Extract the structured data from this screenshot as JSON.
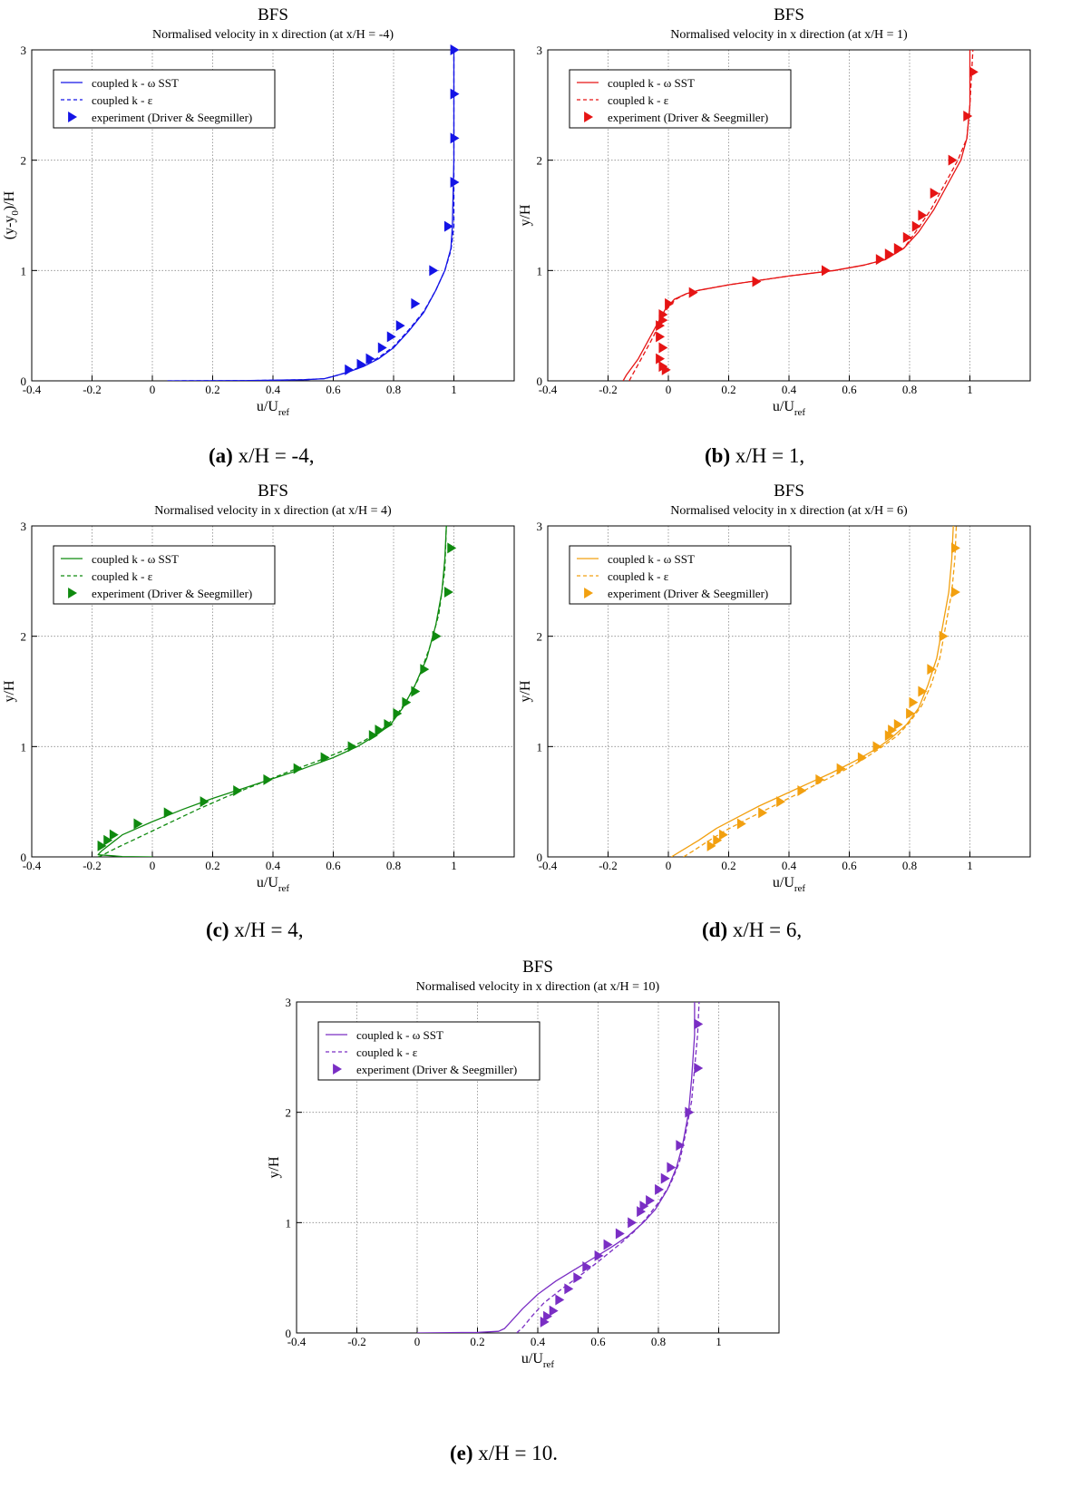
{
  "figure": {
    "captions": [
      {
        "tag": "(a)",
        "text": " x/H = -4,"
      },
      {
        "tag": "(b)",
        "text": " x/H = 1,"
      },
      {
        "tag": "(c)",
        "text": " x/H = 4,"
      },
      {
        "tag": "(d)",
        "text": " x/H = 6,"
      },
      {
        "tag": "(e)",
        "text": " x/H = 10."
      }
    ]
  },
  "chart_data": [
    {
      "type": "line",
      "title": "BFS",
      "subtitle": "Normalised velocity in  x direction (at x/H = -4)",
      "xlabel": "u/U",
      "xlabel_sub": "ref",
      "ylabel": "(y-y",
      "ylabel_sub": "0",
      "ylabel_tail": ")/H",
      "xlim": [
        -0.4,
        1.2
      ],
      "ylim": [
        0,
        3
      ],
      "xticks": [
        -0.4,
        -0.2,
        0,
        0.2,
        0.4,
        0.6,
        0.8,
        1
      ],
      "yticks": [
        0,
        1,
        2,
        3
      ],
      "grid": true,
      "legend_position": "top-left",
      "color": "#1414e6",
      "series": [
        {
          "name": "coupled k - ω SST",
          "style": "solid",
          "x": [
            0.05,
            0.3,
            0.5,
            0.57,
            0.6,
            0.65,
            0.7,
            0.75,
            0.8,
            0.85,
            0.9,
            0.94,
            0.97,
            0.99,
            0.995,
            1.0,
            1.0,
            1.0
          ],
          "y": [
            0,
            0.002,
            0.01,
            0.02,
            0.04,
            0.08,
            0.13,
            0.2,
            0.3,
            0.45,
            0.62,
            0.82,
            1.0,
            1.2,
            1.4,
            2.0,
            2.5,
            3.0
          ]
        },
        {
          "name": "coupled k - ε",
          "style": "dashed",
          "x": [
            0.05,
            0.3,
            0.5,
            0.57,
            0.6,
            0.65,
            0.7,
            0.75,
            0.8,
            0.85,
            0.9,
            0.94,
            0.97,
            0.99,
            1.0,
            1.0,
            1.0,
            1.0
          ],
          "y": [
            0,
            0.002,
            0.01,
            0.02,
            0.04,
            0.08,
            0.14,
            0.21,
            0.31,
            0.46,
            0.63,
            0.82,
            1.0,
            1.18,
            1.4,
            2.0,
            2.5,
            3.0
          ]
        },
        {
          "name": "experiment (Driver & Seegmiller)",
          "style": "marker",
          "x": [
            0.65,
            0.69,
            0.72,
            0.76,
            0.79,
            0.82,
            0.87,
            0.93,
            0.98,
            1.0,
            1.0,
            1.0,
            1.0
          ],
          "y": [
            0.1,
            0.15,
            0.2,
            0.3,
            0.4,
            0.5,
            0.7,
            1.0,
            1.4,
            1.8,
            2.2,
            2.6,
            3.0
          ]
        }
      ]
    },
    {
      "type": "line",
      "title": "BFS",
      "subtitle": "Normalised velocity in  x direction (at x/H = 1)",
      "xlabel": "u/U",
      "xlabel_sub": "ref",
      "ylabel": "y/H",
      "ylabel_sub": "",
      "ylabel_tail": "",
      "xlim": [
        -0.4,
        1.2
      ],
      "ylim": [
        0,
        3
      ],
      "xticks": [
        -0.4,
        -0.2,
        0,
        0.2,
        0.4,
        0.6,
        0.8,
        1
      ],
      "yticks": [
        0,
        1,
        2,
        3
      ],
      "grid": true,
      "legend_position": "top-left",
      "color": "#e61414",
      "series": [
        {
          "name": "coupled k - ω SST",
          "style": "solid",
          "x": [
            -0.15,
            -0.14,
            -0.1,
            -0.06,
            -0.03,
            -0.01,
            0.02,
            0.06,
            0.1,
            0.2,
            0.4,
            0.55,
            0.65,
            0.72,
            0.78,
            0.83,
            0.88,
            0.93,
            0.97,
            0.99,
            1.0,
            1.0
          ],
          "y": [
            0,
            0.05,
            0.2,
            0.4,
            0.55,
            0.65,
            0.74,
            0.79,
            0.82,
            0.87,
            0.95,
            1.0,
            1.05,
            1.1,
            1.2,
            1.35,
            1.55,
            1.8,
            2.0,
            2.2,
            2.5,
            3.0
          ]
        },
        {
          "name": "coupled k - ε",
          "style": "dashed",
          "x": [
            -0.13,
            -0.12,
            -0.09,
            -0.05,
            -0.025,
            -0.005,
            0.025,
            0.06,
            0.1,
            0.2,
            0.4,
            0.55,
            0.65,
            0.72,
            0.78,
            0.82,
            0.87,
            0.92,
            0.96,
            0.99,
            1.0,
            1.01
          ],
          "y": [
            0,
            0.05,
            0.2,
            0.4,
            0.55,
            0.65,
            0.74,
            0.79,
            0.82,
            0.87,
            0.95,
            1.0,
            1.05,
            1.1,
            1.2,
            1.35,
            1.55,
            1.8,
            2.0,
            2.2,
            2.5,
            3.0
          ]
        },
        {
          "name": "experiment (Driver & Seegmiller)",
          "style": "marker",
          "x": [
            -0.01,
            -0.02,
            -0.03,
            -0.02,
            -0.03,
            -0.03,
            -0.02,
            -0.02,
            0.0,
            0.08,
            0.29,
            0.52,
            0.7,
            0.73,
            0.76,
            0.79,
            0.82,
            0.84,
            0.88,
            0.94,
            0.99,
            1.01
          ],
          "y": [
            0.1,
            0.13,
            0.2,
            0.3,
            0.4,
            0.5,
            0.55,
            0.6,
            0.7,
            0.8,
            0.9,
            1.0,
            1.1,
            1.15,
            1.2,
            1.3,
            1.4,
            1.5,
            1.7,
            2.0,
            2.4,
            2.8
          ]
        }
      ]
    },
    {
      "type": "line",
      "title": "BFS",
      "subtitle": "Normalised velocity in  x direction (at x/H = 4)",
      "xlabel": "u/U",
      "xlabel_sub": "ref",
      "ylabel": "y/H",
      "ylabel_sub": "",
      "ylabel_tail": "",
      "xlim": [
        -0.4,
        1.2
      ],
      "ylim": [
        0,
        3
      ],
      "xticks": [
        -0.4,
        -0.2,
        0,
        0.2,
        0.4,
        0.6,
        0.8,
        1
      ],
      "yticks": [
        0,
        1,
        2,
        3
      ],
      "grid": true,
      "legend_position": "top-left",
      "color": "#0f8a0f",
      "series": [
        {
          "name": "coupled k - ω SST",
          "style": "solid",
          "x": [
            0.0,
            -0.1,
            -0.18,
            -0.17,
            -0.1,
            0.0,
            0.1,
            0.2,
            0.3,
            0.4,
            0.5,
            0.6,
            0.68,
            0.74,
            0.79,
            0.83,
            0.87,
            0.91,
            0.94,
            0.96,
            0.97,
            0.975
          ],
          "y": [
            0.0,
            0.003,
            0.02,
            0.05,
            0.2,
            0.32,
            0.43,
            0.53,
            0.62,
            0.71,
            0.8,
            0.9,
            1.0,
            1.1,
            1.2,
            1.35,
            1.55,
            1.8,
            2.1,
            2.4,
            2.7,
            3.0
          ]
        },
        {
          "name": "coupled k - ε",
          "style": "dashed",
          "x": [
            -0.18,
            -0.17,
            -0.12,
            -0.05,
            0.05,
            0.15,
            0.25,
            0.35,
            0.45,
            0.55,
            0.63,
            0.7,
            0.76,
            0.8,
            0.84,
            0.88,
            0.92,
            0.95,
            0.97,
            0.975
          ],
          "y": [
            0,
            0.01,
            0.08,
            0.17,
            0.3,
            0.43,
            0.55,
            0.66,
            0.77,
            0.87,
            0.96,
            1.05,
            1.15,
            1.25,
            1.4,
            1.6,
            1.9,
            2.2,
            2.6,
            3.0
          ]
        },
        {
          "name": "experiment (Driver & Seegmiller)",
          "style": "marker",
          "x": [
            -0.17,
            -0.15,
            -0.13,
            -0.05,
            0.05,
            0.17,
            0.28,
            0.38,
            0.48,
            0.57,
            0.66,
            0.73,
            0.75,
            0.78,
            0.81,
            0.84,
            0.87,
            0.9,
            0.94,
            0.98,
            0.99
          ],
          "y": [
            0.1,
            0.15,
            0.2,
            0.3,
            0.4,
            0.5,
            0.6,
            0.7,
            0.8,
            0.9,
            1.0,
            1.1,
            1.15,
            1.2,
            1.3,
            1.4,
            1.5,
            1.7,
            2.0,
            2.4,
            2.8
          ]
        }
      ]
    },
    {
      "type": "line",
      "title": "BFS",
      "subtitle": "Normalised velocity in  x direction (at x/H = 6)",
      "xlabel": "u/U",
      "xlabel_sub": "ref",
      "ylabel": "y/H",
      "ylabel_sub": "",
      "ylabel_tail": "",
      "xlim": [
        -0.4,
        1.2
      ],
      "ylim": [
        0,
        3
      ],
      "xticks": [
        -0.4,
        -0.2,
        0,
        0.2,
        0.4,
        0.6,
        0.8,
        1
      ],
      "yticks": [
        0,
        1,
        2,
        3
      ],
      "grid": true,
      "legend_position": "top-left",
      "color": "#f2a010",
      "series": [
        {
          "name": "coupled k - ω SST",
          "style": "solid",
          "x": [
            0.01,
            0.04,
            0.1,
            0.16,
            0.23,
            0.3,
            0.38,
            0.46,
            0.54,
            0.62,
            0.69,
            0.74,
            0.79,
            0.83,
            0.86,
            0.89,
            0.91,
            0.93,
            0.94,
            0.945
          ],
          "y": [
            0,
            0.05,
            0.15,
            0.26,
            0.36,
            0.46,
            0.56,
            0.66,
            0.76,
            0.87,
            0.98,
            1.08,
            1.2,
            1.35,
            1.55,
            1.8,
            2.1,
            2.4,
            2.7,
            3.0
          ]
        },
        {
          "name": "coupled k - ε",
          "style": "dashed",
          "x": [
            0.05,
            0.08,
            0.13,
            0.19,
            0.26,
            0.34,
            0.42,
            0.5,
            0.58,
            0.65,
            0.71,
            0.76,
            0.8,
            0.84,
            0.87,
            0.9,
            0.92,
            0.94,
            0.95,
            0.955
          ],
          "y": [
            0,
            0.05,
            0.14,
            0.24,
            0.34,
            0.45,
            0.56,
            0.67,
            0.78,
            0.89,
            1.0,
            1.1,
            1.22,
            1.37,
            1.55,
            1.8,
            2.1,
            2.4,
            2.7,
            3.0
          ]
        },
        {
          "name": "experiment (Driver & Seegmiller)",
          "style": "marker",
          "x": [
            0.14,
            0.16,
            0.18,
            0.24,
            0.31,
            0.37,
            0.44,
            0.5,
            0.57,
            0.64,
            0.69,
            0.73,
            0.74,
            0.76,
            0.8,
            0.81,
            0.84,
            0.87,
            0.91,
            0.95,
            0.95
          ],
          "y": [
            0.1,
            0.15,
            0.2,
            0.3,
            0.4,
            0.5,
            0.6,
            0.7,
            0.8,
            0.9,
            1.0,
            1.1,
            1.15,
            1.2,
            1.3,
            1.4,
            1.5,
            1.7,
            2.0,
            2.4,
            2.8
          ]
        }
      ]
    },
    {
      "type": "line",
      "title": "BFS",
      "subtitle": "Normalised velocity in  x direction (at x/H = 10)",
      "xlabel": "u/U",
      "xlabel_sub": "ref",
      "ylabel": "y/H",
      "ylabel_sub": "",
      "ylabel_tail": "",
      "xlim": [
        -0.4,
        1.2
      ],
      "ylim": [
        0,
        3
      ],
      "xticks": [
        -0.4,
        -0.2,
        0,
        0.2,
        0.4,
        0.6,
        0.8,
        1
      ],
      "yticks": [
        0,
        1,
        2,
        3
      ],
      "grid": true,
      "legend_position": "top-left",
      "color": "#7a2ec4",
      "series": [
        {
          "name": "coupled k - ω SST",
          "style": "solid",
          "x": [
            0.0,
            0.2,
            0.27,
            0.29,
            0.31,
            0.35,
            0.4,
            0.46,
            0.52,
            0.58,
            0.64,
            0.7,
            0.75,
            0.79,
            0.83,
            0.86,
            0.88,
            0.9,
            0.91,
            0.92,
            0.92
          ],
          "y": [
            0,
            0.005,
            0.015,
            0.04,
            0.1,
            0.22,
            0.35,
            0.47,
            0.57,
            0.67,
            0.77,
            0.88,
            1.0,
            1.12,
            1.3,
            1.5,
            1.7,
            2.0,
            2.3,
            2.7,
            3.0
          ]
        },
        {
          "name": "coupled k - ε",
          "style": "dashed",
          "x": [
            0.33,
            0.35,
            0.38,
            0.42,
            0.47,
            0.52,
            0.57,
            0.62,
            0.67,
            0.72,
            0.76,
            0.8,
            0.84,
            0.87,
            0.89,
            0.91,
            0.92,
            0.93,
            0.935
          ],
          "y": [
            0,
            0.05,
            0.15,
            0.27,
            0.38,
            0.48,
            0.58,
            0.69,
            0.8,
            0.92,
            1.04,
            1.18,
            1.35,
            1.55,
            1.8,
            2.1,
            2.4,
            2.7,
            3.0
          ]
        },
        {
          "name": "experiment (Driver & Seegmiller)",
          "style": "marker",
          "x": [
            0.42,
            0.43,
            0.45,
            0.47,
            0.5,
            0.53,
            0.56,
            0.6,
            0.63,
            0.67,
            0.71,
            0.74,
            0.75,
            0.77,
            0.8,
            0.82,
            0.84,
            0.87,
            0.9,
            0.93,
            0.93
          ],
          "y": [
            0.1,
            0.15,
            0.2,
            0.3,
            0.4,
            0.5,
            0.6,
            0.7,
            0.8,
            0.9,
            1.0,
            1.1,
            1.15,
            1.2,
            1.3,
            1.4,
            1.5,
            1.7,
            2.0,
            2.4,
            2.8
          ]
        }
      ]
    }
  ]
}
